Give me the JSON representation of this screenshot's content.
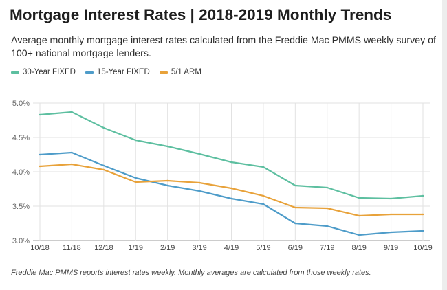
{
  "header": {
    "title": "Mortgage Interest Rates | 2018-2019 Monthly Trends",
    "subtitle": "Average monthly mortgage interest rates calculated from the Freddie Mac PMMS weekly survey of 100+ national mortgage lenders."
  },
  "footnote": "Freddie Mac PMMS reports interest rates weekly. Monthly averages are calculated from those weekly rates.",
  "chart_data": {
    "type": "line",
    "title": "",
    "xlabel": "",
    "ylabel": "",
    "categories": [
      "10/18",
      "11/18",
      "12/18",
      "1/19",
      "2/19",
      "3/19",
      "4/19",
      "5/19",
      "6/19",
      "7/19",
      "8/19",
      "9/19",
      "10/19"
    ],
    "ylim": [
      3.0,
      5.0
    ],
    "yticks": [
      "5.0%",
      "4.5%",
      "4.0%",
      "3.5%",
      "3.0%"
    ],
    "grid": true,
    "legend_position": "top-left",
    "series": [
      {
        "name": "30-Year FIXED",
        "color": "#5dbfa0",
        "values": [
          4.83,
          4.87,
          4.64,
          4.46,
          4.37,
          4.26,
          4.14,
          4.07,
          3.8,
          3.77,
          3.62,
          3.61,
          3.65
        ]
      },
      {
        "name": "15-Year FIXED",
        "color": "#4e9cc9",
        "values": [
          4.25,
          4.28,
          4.09,
          3.91,
          3.8,
          3.72,
          3.61,
          3.53,
          3.25,
          3.21,
          3.08,
          3.12,
          3.14
        ]
      },
      {
        "name": "5/1 ARM",
        "color": "#e8a23a",
        "values": [
          4.08,
          4.11,
          4.03,
          3.85,
          3.87,
          3.84,
          3.76,
          3.65,
          3.48,
          3.47,
          3.36,
          3.38,
          3.38
        ]
      }
    ]
  }
}
